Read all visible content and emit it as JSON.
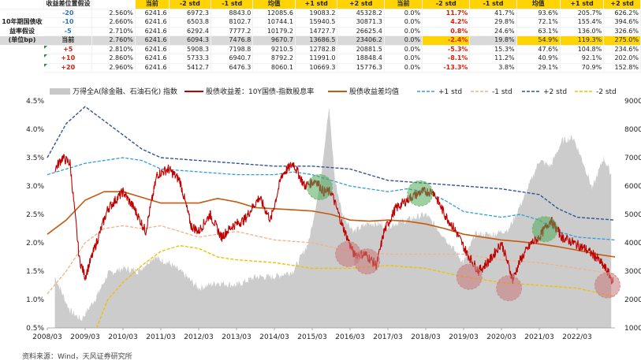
{
  "table": {
    "header": [
      "收益差位置假设",
      "",
      "当前",
      "-2 std",
      "-1 std",
      "均值",
      "+1 std",
      "+2 std",
      "当前",
      "-2 std",
      "-1 std",
      "均值",
      "+1 std",
      "+2 std"
    ],
    "row_label_lines": [
      "10年期国债收",
      "益率假设",
      "(单位bp)"
    ],
    "rows": [
      {
        "bp": "-20",
        "cells": [
          "2.560%",
          "6241.6",
          "6972.3",
          "8843.0",
          "12085.6",
          "19083.2",
          "45328.2",
          "0.0%",
          "11.7%",
          "41.7%",
          "93.6%",
          "205.7%",
          "626.2%"
        ]
      },
      {
        "bp": "-10",
        "cells": [
          "2.660%",
          "6241.6",
          "6503.8",
          "8102.7",
          "10744.1",
          "15940.5",
          "30871.3",
          "0.0%",
          "4.2%",
          "29.8%",
          "72.1%",
          "155.4%",
          "394.6%"
        ]
      },
      {
        "bp": "-5",
        "cells": [
          "2.710%",
          "6241.6",
          "6292.4",
          "7777.2",
          "10179.2",
          "14727.7",
          "26625.4",
          "0.0%",
          "0.8%",
          "24.6%",
          "63.1%",
          "136.0%",
          "326.6%"
        ]
      },
      {
        "bp": "当前",
        "cells": [
          "2.760%",
          "6241.6",
          "6094.3",
          "7476.8",
          "9670.7",
          "13686.5",
          "23406.2",
          "0.0%",
          "-2.4%",
          "19.8%",
          "54.9%",
          "119.3%",
          "275.0%"
        ]
      },
      {
        "bp": "+5",
        "cells": [
          "2.810%",
          "6241.6",
          "5908.3",
          "7198.8",
          "9210.5",
          "12782.8",
          "20881.5",
          "0.0%",
          "-5.3%",
          "15.3%",
          "47.6%",
          "104.8%",
          "234.6%"
        ]
      },
      {
        "bp": "+10",
        "cells": [
          "2.860%",
          "6241.6",
          "5733.3",
          "6940.7",
          "8792.2",
          "11991.0",
          "18848.4",
          "0.0%",
          "-8.1%",
          "11.2%",
          "40.9%",
          "92.1%",
          "202.0%"
        ]
      },
      {
        "bp": "+20",
        "cells": [
          "2.960%",
          "6241.6",
          "5412.7",
          "6476.3",
          "8060.1",
          "10669.3",
          "15776.3",
          "0.0%",
          "-13.3%",
          "3.8%",
          "29.1%",
          "70.9%",
          "152.8%"
        ]
      }
    ]
  },
  "chart_data": {
    "type": "line",
    "x_ticks": [
      "2008/03",
      "2009/03",
      "2010/03",
      "2011/03",
      "2012/03",
      "2013/03",
      "2014/03",
      "2015/03",
      "2016/03",
      "2017/03",
      "2018/03",
      "2019/03",
      "2020/03",
      "2021/03",
      "2022/03"
    ],
    "xlim": [
      2008.0,
      2023.0
    ],
    "y_left": {
      "ticks": [
        "4.5%",
        "4.0%",
        "3.5%",
        "3.0%",
        "2.5%",
        "2.0%",
        "1.5%",
        "1.0%",
        "0.5%"
      ],
      "range": [
        0.5,
        4.5
      ]
    },
    "y_right": {
      "ticks": [
        "9000",
        "8000",
        "7000",
        "6000",
        "5000",
        "4000",
        "3000",
        "2000",
        "1000"
      ],
      "range": [
        1000,
        9000
      ]
    },
    "legend": [
      {
        "name": "万得全A(除金融、石油石化) 指数",
        "color": "#c8c8c8",
        "style": "area"
      },
      {
        "name": "股债收益差：10Y国债-指数股息率",
        "color": "#c00000",
        "style": "solid"
      },
      {
        "name": "股债收益差均值",
        "color": "#c55a11",
        "style": "solid"
      },
      {
        "name": "+1 std",
        "color": "#2e9fd8",
        "style": "dash"
      },
      {
        "name": "-1 std",
        "color": "#f4b183",
        "style": "dash"
      },
      {
        "name": "+2 std",
        "color": "#2e5597",
        "style": "dash"
      },
      {
        "name": "-2 std",
        "color": "#f0c000",
        "style": "dash"
      }
    ],
    "series": {
      "index_area": {
        "x": [
          2008.2,
          2008.6,
          2008.9,
          2009.3,
          2009.6,
          2010.0,
          2010.4,
          2010.8,
          2011.2,
          2011.6,
          2012.0,
          2012.5,
          2013.0,
          2013.5,
          2014.0,
          2014.5,
          2014.9,
          2015.2,
          2015.4,
          2015.45,
          2015.6,
          2015.8,
          2016.1,
          2016.5,
          2017.0,
          2017.5,
          2018.0,
          2018.5,
          2019.0,
          2019.3,
          2019.8,
          2020.2,
          2020.6,
          2021.0,
          2021.3,
          2021.6,
          2021.9,
          2022.2,
          2022.4,
          2022.7,
          2022.9
        ],
        "y": [
          2800,
          1600,
          1300,
          2100,
          2900,
          3100,
          3000,
          3500,
          3300,
          2900,
          2400,
          2600,
          2500,
          2800,
          2800,
          3000,
          4000,
          6000,
          8300,
          8700,
          6200,
          5000,
          4400,
          4700,
          4600,
          4800,
          5000,
          4200,
          3300,
          4300,
          4300,
          4500,
          5600,
          6900,
          6700,
          7600,
          7700,
          6700,
          5900,
          7000,
          6400
        ]
      },
      "spread": {
        "x": [
          2008.2,
          2008.4,
          2008.6,
          2008.85,
          2009.0,
          2009.3,
          2009.6,
          2010.0,
          2010.3,
          2010.6,
          2010.9,
          2011.2,
          2011.5,
          2011.8,
          2012.0,
          2012.3,
          2012.6,
          2012.9,
          2013.2,
          2013.6,
          2013.9,
          2014.2,
          2014.5,
          2014.8,
          2015.1,
          2015.3,
          2015.5,
          2015.8,
          2016.1,
          2016.4,
          2016.7,
          2016.9,
          2017.2,
          2017.6,
          2017.9,
          2018.2,
          2018.5,
          2018.8,
          2019.1,
          2019.4,
          2019.7,
          2020.0,
          2020.3,
          2020.5,
          2020.8,
          2021.0,
          2021.3,
          2021.6,
          2021.9,
          2022.2,
          2022.5,
          2022.8,
          2022.95
        ],
        "y": [
          3.3,
          3.5,
          3.4,
          1.7,
          1.4,
          2.0,
          2.6,
          2.9,
          2.6,
          2.2,
          3.2,
          3.3,
          3.1,
          2.3,
          2.2,
          2.5,
          2.1,
          2.3,
          2.4,
          2.8,
          2.4,
          3.2,
          3.4,
          3.0,
          3.1,
          2.9,
          2.9,
          2.3,
          1.8,
          1.8,
          1.6,
          2.2,
          2.6,
          2.8,
          2.9,
          2.9,
          2.5,
          2.2,
          1.8,
          1.5,
          1.7,
          2.0,
          1.35,
          1.7,
          2.0,
          2.1,
          2.4,
          2.1,
          2.0,
          1.9,
          1.75,
          1.5,
          1.3
        ]
      },
      "mean": {
        "x": [
          2008.0,
          2008.5,
          2009.0,
          2009.5,
          2010.0,
          2010.5,
          2011.0,
          2011.5,
          2012.0,
          2012.5,
          2013.0,
          2013.5,
          2014.0,
          2014.5,
          2015.0,
          2015.5,
          2016.0,
          2016.5,
          2017.0,
          2017.5,
          2018.0,
          2018.5,
          2019.0,
          2019.5,
          2020.0,
          2020.5,
          2021.0,
          2021.5,
          2022.0,
          2022.5,
          2023.0
        ],
        "y": [
          2.15,
          2.4,
          2.75,
          2.9,
          2.9,
          2.8,
          2.7,
          2.7,
          2.7,
          2.78,
          2.72,
          2.62,
          2.6,
          2.58,
          2.56,
          2.5,
          2.4,
          2.38,
          2.4,
          2.38,
          2.33,
          2.25,
          2.15,
          2.1,
          2.05,
          2.02,
          1.98,
          1.93,
          1.87,
          1.8,
          1.75
        ]
      },
      "plus1": {
        "x": [
          2008.0,
          2009.0,
          2010.0,
          2010.5,
          2011.0,
          2012.0,
          2013.0,
          2014.0,
          2014.5,
          2015.0,
          2015.5,
          2016.0,
          2017.0,
          2017.5,
          2018.0,
          2018.5,
          2019.0,
          2020.0,
          2020.5,
          2021.0,
          2021.5,
          2022.0,
          2023.0
        ],
        "y": [
          3.2,
          3.4,
          3.5,
          3.45,
          3.3,
          3.25,
          3.2,
          3.2,
          3.25,
          3.2,
          3.1,
          3.0,
          2.9,
          2.95,
          2.9,
          2.75,
          2.55,
          2.45,
          2.5,
          2.4,
          2.2,
          2.1,
          2.05
        ]
      },
      "minus1": {
        "x": [
          2008.0,
          2008.5,
          2009.0,
          2009.5,
          2010.0,
          2010.5,
          2011.0,
          2012.0,
          2013.0,
          2014.0,
          2015.0,
          2016.0,
          2017.0,
          2018.0,
          2019.0,
          2020.0,
          2021.0,
          2022.0,
          2023.0
        ],
        "y": [
          1.1,
          1.5,
          2.0,
          2.25,
          2.3,
          2.25,
          2.3,
          2.1,
          2.2,
          2.05,
          2.0,
          1.85,
          1.8,
          1.8,
          1.8,
          1.7,
          1.65,
          1.55,
          1.45
        ]
      },
      "plus2": {
        "x": [
          2008.0,
          2008.5,
          2009.0,
          2009.5,
          2010.0,
          2010.5,
          2011.0,
          2012.0,
          2013.0,
          2014.0,
          2015.0,
          2016.0,
          2017.0,
          2018.0,
          2019.0,
          2020.0,
          2020.5,
          2021.0,
          2021.5,
          2022.0,
          2023.0
        ],
        "y": [
          3.5,
          4.1,
          4.4,
          4.15,
          3.9,
          3.65,
          3.5,
          3.45,
          3.4,
          3.35,
          3.35,
          3.3,
          3.1,
          3.05,
          3.0,
          2.95,
          2.9,
          2.85,
          2.6,
          2.45,
          2.4
        ]
      },
      "minus2": {
        "x": [
          2009.3,
          2009.6,
          2010.0,
          2010.5,
          2011.0,
          2011.5,
          2012.0,
          2012.5,
          2013.0,
          2014.0,
          2015.0,
          2016.0,
          2017.0,
          2018.0,
          2019.0,
          2020.0,
          2021.0,
          2022.0,
          2023.0
        ],
        "y": [
          0.5,
          1.0,
          1.3,
          1.6,
          1.85,
          1.95,
          1.9,
          1.75,
          1.7,
          1.65,
          1.55,
          1.55,
          1.6,
          1.55,
          1.4,
          1.3,
          1.25,
          1.2,
          1.05
        ]
      }
    },
    "highlights": {
      "green": [
        [
          2015.2,
          2.98
        ],
        [
          2017.85,
          2.87
        ],
        [
          2021.15,
          2.24
        ]
      ],
      "red": [
        [
          2015.95,
          1.8
        ],
        [
          2016.45,
          1.67
        ],
        [
          2019.15,
          1.4
        ],
        [
          2020.2,
          1.2
        ],
        [
          2022.8,
          1.25
        ]
      ]
    }
  },
  "source": "资料来源：Wind，天风证券研究所"
}
